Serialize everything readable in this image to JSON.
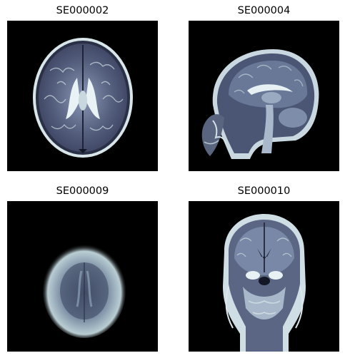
{
  "panels": [
    {
      "title": "SE000002",
      "view": "axial-brain-mri",
      "colormap": "bone"
    },
    {
      "title": "SE000004",
      "view": "sagittal-head-mri",
      "colormap": "bone"
    },
    {
      "title": "SE000009",
      "view": "axial-brain-mri-low-resolution",
      "colormap": "bone"
    },
    {
      "title": "SE000010",
      "view": "coronal-head-mri",
      "colormap": "bone"
    }
  ],
  "colors": {
    "background": "#000000",
    "bone_dark": "#3b4158",
    "bone_mid": "#7a8aa5",
    "bone_light": "#e8f2f4"
  }
}
